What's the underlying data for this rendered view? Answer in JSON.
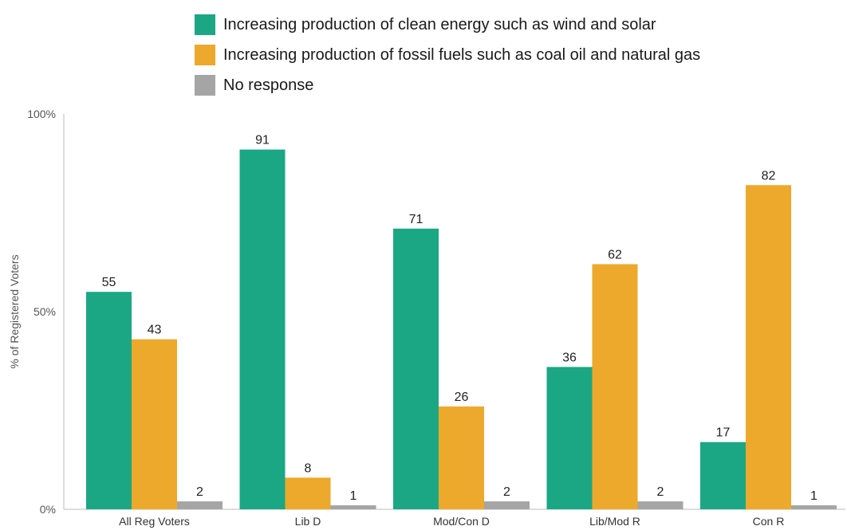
{
  "chart_data": {
    "type": "bar",
    "categories": [
      "All Reg Voters",
      "Lib D",
      "Mod/Con D",
      "Lib/Mod R",
      "Con R"
    ],
    "series": [
      {
        "name": "Increasing production of clean energy such as wind and solar",
        "color": "#1ba784",
        "values": [
          55,
          91,
          71,
          36,
          17
        ]
      },
      {
        "name": "Increasing production of fossil fuels such as coal oil and natural gas",
        "color": "#eca92b",
        "values": [
          43,
          8,
          26,
          62,
          82
        ]
      },
      {
        "name": "No response",
        "color": "#a5a5a5",
        "values": [
          2,
          1,
          2,
          2,
          1
        ]
      }
    ],
    "ylabel": "% of Registered Voters",
    "ylim": [
      0,
      100
    ],
    "yticks": [
      {
        "value": 0,
        "label": "0%"
      },
      {
        "value": 50,
        "label": "50%"
      },
      {
        "value": 100,
        "label": "100%"
      }
    ],
    "legend_position": "top"
  }
}
